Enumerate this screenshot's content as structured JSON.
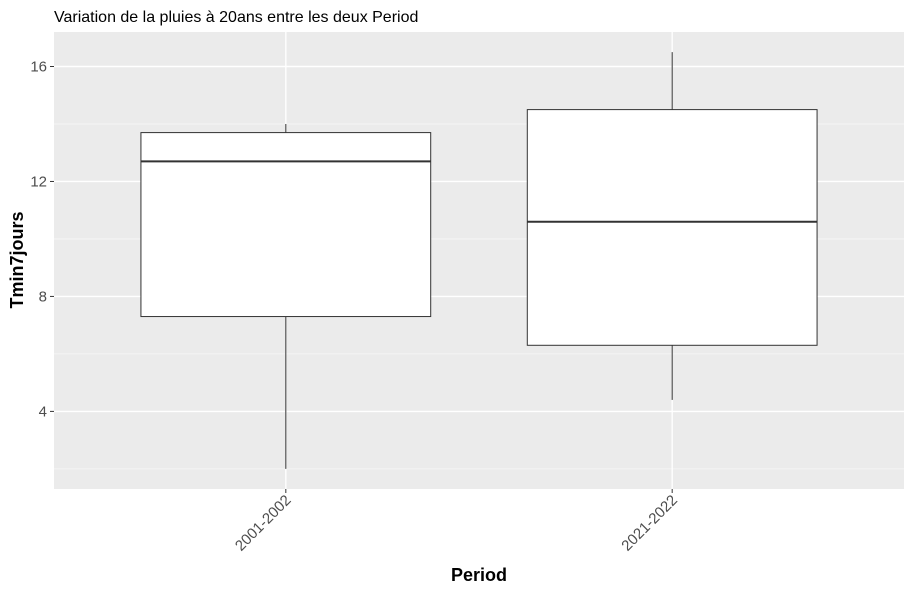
{
  "chart_data": {
    "type": "boxplot",
    "title": "Variation  de la pluies à 20ans entre les deux Period",
    "xlabel": "Period",
    "ylabel": "Tmin7jours",
    "categories": [
      "2001-2002",
      "2021-2022"
    ],
    "boxes": [
      {
        "category": "2001-2002",
        "whisker_low": 2.0,
        "q1": 7.3,
        "median": 12.7,
        "q3": 13.7,
        "whisker_high": 14.0
      },
      {
        "category": "2021-2022",
        "whisker_low": 4.4,
        "q1": 6.3,
        "median": 10.6,
        "q3": 14.5,
        "whisker_high": 16.5
      }
    ],
    "yticks": [
      4,
      8,
      12,
      16
    ],
    "ylim": [
      1.3,
      17.2
    ],
    "grid": true,
    "x_tick_rotation_deg": 45,
    "colors": {
      "panel_background": "#ebebeb",
      "grid_major": "#ffffff",
      "grid_minor": "#f7f7f7",
      "box_fill": "#ffffff",
      "box_stroke": "#333333",
      "tick_label": "#4d4d4d"
    }
  }
}
